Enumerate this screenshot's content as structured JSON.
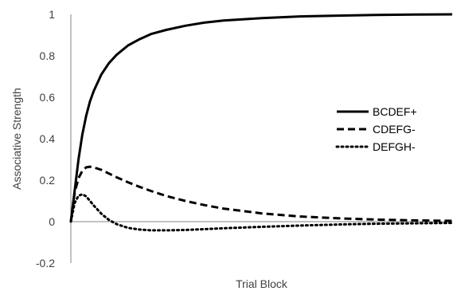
{
  "chart_data": {
    "type": "line",
    "title": "",
    "xlabel": "Trial Block",
    "ylabel": "Associative Strength",
    "xlim": [
      0,
      100
    ],
    "ylim": [
      -0.2,
      1
    ],
    "yticks": [
      "-0.2",
      "0",
      "0.2",
      "0.4",
      "0.6",
      "0.8",
      "1"
    ],
    "x_tick_labels": false,
    "grid": false,
    "legend_position": "right",
    "series": [
      {
        "name": "BCDEF+",
        "color": "#000000",
        "dash": "solid",
        "x": [
          0,
          1,
          2,
          3,
          4,
          5,
          6,
          8,
          10,
          12,
          15,
          18,
          21,
          25,
          30,
          35,
          40,
          50,
          60,
          70,
          80,
          90,
          100
        ],
        "y": [
          0,
          0.15,
          0.3,
          0.42,
          0.51,
          0.58,
          0.63,
          0.71,
          0.765,
          0.805,
          0.85,
          0.88,
          0.905,
          0.925,
          0.945,
          0.96,
          0.97,
          0.982,
          0.99,
          0.994,
          0.997,
          0.999,
          1.0
        ]
      },
      {
        "name": "CDEFG-",
        "color": "#000000",
        "dash": "dashed",
        "x": [
          0,
          1,
          2,
          3,
          4,
          5,
          6,
          8,
          10,
          12,
          15,
          18,
          21,
          25,
          30,
          35,
          40,
          50,
          60,
          70,
          80,
          90,
          100
        ],
        "y": [
          0,
          0.14,
          0.21,
          0.245,
          0.262,
          0.265,
          0.262,
          0.25,
          0.232,
          0.214,
          0.19,
          0.168,
          0.148,
          0.124,
          0.1,
          0.08,
          0.063,
          0.04,
          0.025,
          0.016,
          0.01,
          0.006,
          0.004
        ]
      },
      {
        "name": "DEFGH-",
        "color": "#000000",
        "dash": "dotted",
        "x": [
          0,
          1,
          2,
          3,
          4,
          5,
          6,
          8,
          10,
          12,
          15,
          18,
          21,
          25,
          30,
          35,
          40,
          50,
          60,
          70,
          80,
          90,
          100
        ],
        "y": [
          0,
          0.09,
          0.125,
          0.132,
          0.122,
          0.1,
          0.078,
          0.038,
          0.008,
          -0.012,
          -0.03,
          -0.038,
          -0.042,
          -0.042,
          -0.04,
          -0.036,
          -0.032,
          -0.025,
          -0.019,
          -0.014,
          -0.01,
          -0.008,
          -0.006
        ]
      }
    ]
  }
}
